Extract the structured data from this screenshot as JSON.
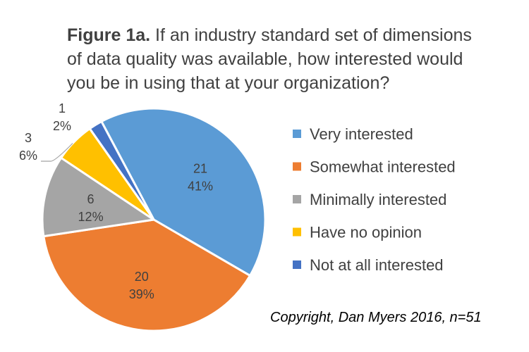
{
  "chart_data": {
    "type": "pie",
    "title_prefix": "Figure 1a.",
    "title_lines": [
      " If an industry standard set of dimensions",
      "of data quality was available, how interested would",
      "you be in using that at your organization?"
    ],
    "categories": [
      "Very interested",
      "Somewhat interested",
      "Minimally interested",
      "Have no opinion",
      "Not at all interested"
    ],
    "values": [
      21,
      20,
      6,
      3,
      1
    ],
    "percent_labels": [
      "41%",
      "39%",
      "12%",
      "6%",
      "2%"
    ],
    "colors": [
      "#5B9BD5",
      "#ED7D31",
      "#A5A5A5",
      "#FFC000",
      "#4472C4"
    ],
    "legend_position": "right",
    "footnote": "Copyright, Dan Myers 2016, n=51"
  }
}
